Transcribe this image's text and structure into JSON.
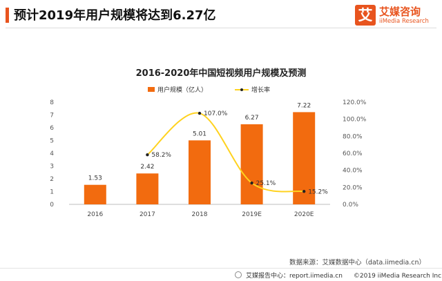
{
  "header": {
    "headline": "预计2019年用户规模将达到6.27亿",
    "brand_mark": "艾",
    "brand_name": "艾媒咨询",
    "brand_sub": "iiMedia Research",
    "brand_color": "#e8541e"
  },
  "chart_data": {
    "type": "bar",
    "title": "2016-2020年中国短视频用户规模及预测",
    "categories": [
      "2016",
      "2017",
      "2018",
      "2019E",
      "2020E"
    ],
    "series": [
      {
        "name": "用户规模（亿人）",
        "type": "bar",
        "axis": "left",
        "color": "#f26b0f",
        "values": [
          1.53,
          2.42,
          5.01,
          6.27,
          7.22
        ],
        "labels": [
          "1.53",
          "2.42",
          "5.01",
          "6.27",
          "7.22"
        ]
      },
      {
        "name": "增长率",
        "type": "line",
        "axis": "right",
        "color": "#ffd21f",
        "values": [
          null,
          58.2,
          107.0,
          25.1,
          15.2
        ],
        "labels": [
          "",
          "58.2%",
          "107.0%",
          "25.1%",
          "15.2%"
        ]
      }
    ],
    "y_left": {
      "ylim": [
        0,
        8
      ],
      "ticks": [
        "0",
        "1",
        "2",
        "3",
        "4",
        "5",
        "6",
        "7",
        "8"
      ]
    },
    "y_right": {
      "ylim": [
        0,
        120
      ],
      "ticks": [
        "0.0%",
        "20.0%",
        "40.0%",
        "60.0%",
        "80.0%",
        "100.0%",
        "120.0%"
      ]
    },
    "legend": "top",
    "grid": false
  },
  "source": "数据来源：艾媒数据中心（data.iimedia.cn）",
  "footer": {
    "report": "艾媒报告中心：report.iimedia.cn",
    "copyright": "©2019  iiMedia Research  Inc"
  }
}
